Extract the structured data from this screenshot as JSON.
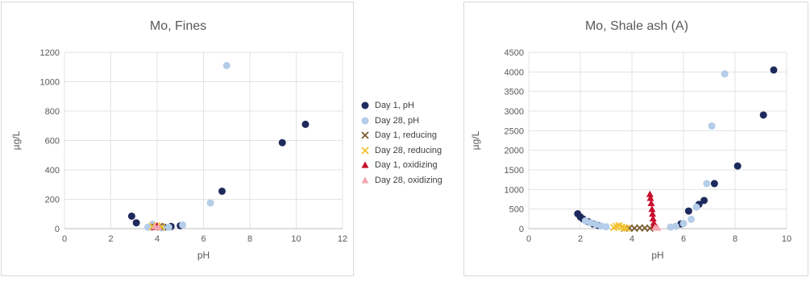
{
  "legend": [
    {
      "name": "Day 1, pH",
      "marker": "circle",
      "color": "#1f2a5c"
    },
    {
      "name": "Day 28, pH",
      "marker": "circle",
      "color": "#b4cde8"
    },
    {
      "name": "Day 1, reducing",
      "marker": "x",
      "color": "#7a5b2e"
    },
    {
      "name": "Day 28, reducing",
      "marker": "x",
      "color": "#f2c12e"
    },
    {
      "name": "Day 1, oxidizing",
      "marker": "triangle",
      "color": "#c8102e"
    },
    {
      "name": "Day 28, oxidizing",
      "marker": "triangle",
      "color": "#f4a6b0"
    }
  ],
  "chart_data": [
    {
      "type": "scatter",
      "title": "Mo, Fines",
      "xlabel": "pH",
      "ylabel": "µg/L",
      "xlim": [
        0,
        12
      ],
      "ylim": [
        0,
        1200
      ],
      "xticks": [
        0,
        2,
        4,
        6,
        8,
        10,
        12
      ],
      "yticks": [
        0,
        200,
        400,
        600,
        800,
        1000,
        1200
      ],
      "grid": true,
      "series": [
        {
          "name": "Day 1, pH",
          "points": [
            [
              2.9,
              85
            ],
            [
              3.1,
              40
            ],
            [
              3.8,
              15
            ],
            [
              4.3,
              10
            ],
            [
              4.6,
              15
            ],
            [
              5.0,
              20
            ],
            [
              6.8,
              255
            ],
            [
              9.4,
              585
            ],
            [
              10.4,
              710
            ]
          ]
        },
        {
          "name": "Day 28, pH",
          "points": [
            [
              3.6,
              10
            ],
            [
              3.8,
              30
            ],
            [
              4.2,
              5
            ],
            [
              4.5,
              10
            ],
            [
              5.1,
              25
            ],
            [
              6.3,
              175
            ],
            [
              7.0,
              1110
            ]
          ]
        },
        {
          "name": "Day 1, reducing",
          "points": [
            [
              3.9,
              10
            ],
            [
              4.1,
              15
            ]
          ]
        },
        {
          "name": "Day 28, reducing",
          "points": [
            [
              3.8,
              15
            ],
            [
              4.0,
              20
            ],
            [
              4.2,
              10
            ]
          ]
        },
        {
          "name": "Day 1, oxidizing",
          "points": [
            [
              3.9,
              10
            ],
            [
              4.0,
              20
            ]
          ]
        },
        {
          "name": "Day 28, oxidizing",
          "points": [
            [
              3.9,
              15
            ],
            [
              4.05,
              10
            ]
          ]
        }
      ]
    },
    {
      "type": "scatter",
      "title": "Mo, Shale ash (A)",
      "xlabel": "pH",
      "ylabel": "µg/L",
      "xlim": [
        0,
        10
      ],
      "ylim": [
        0,
        4500
      ],
      "xticks": [
        0,
        2,
        4,
        6,
        8,
        10
      ],
      "yticks": [
        0,
        500,
        1000,
        1500,
        2000,
        2500,
        3000,
        3500,
        4000,
        4500
      ],
      "grid": true,
      "series": [
        {
          "name": "Day 1, pH",
          "points": [
            [
              1.9,
              380
            ],
            [
              2.0,
              300
            ],
            [
              2.1,
              250
            ],
            [
              2.3,
              180
            ],
            [
              2.5,
              120
            ],
            [
              2.7,
              80
            ],
            [
              5.9,
              120
            ],
            [
              6.2,
              450
            ],
            [
              6.6,
              620
            ],
            [
              6.8,
              720
            ],
            [
              7.2,
              1150
            ],
            [
              8.1,
              1600
            ],
            [
              9.1,
              2900
            ],
            [
              9.5,
              4050
            ]
          ]
        },
        {
          "name": "Day 28, pH",
          "points": [
            [
              2.2,
              200
            ],
            [
              2.4,
              150
            ],
            [
              2.6,
              110
            ],
            [
              2.8,
              70
            ],
            [
              3.0,
              50
            ],
            [
              5.5,
              40
            ],
            [
              5.7,
              60
            ],
            [
              6.0,
              130
            ],
            [
              6.3,
              240
            ],
            [
              6.5,
              550
            ],
            [
              6.9,
              1150
            ],
            [
              7.1,
              2620
            ],
            [
              7.6,
              3950
            ]
          ]
        },
        {
          "name": "Day 1, reducing",
          "points": [
            [
              3.7,
              10
            ],
            [
              3.9,
              15
            ],
            [
              4.1,
              10
            ],
            [
              4.3,
              20
            ],
            [
              4.5,
              15
            ],
            [
              4.7,
              10
            ]
          ]
        },
        {
          "name": "Day 28, reducing",
          "points": [
            [
              3.3,
              30
            ],
            [
              3.4,
              60
            ],
            [
              3.5,
              80
            ],
            [
              3.6,
              40
            ],
            [
              3.7,
              20
            ],
            [
              3.8,
              10
            ]
          ]
        },
        {
          "name": "Day 1, oxidizing",
          "points": [
            [
              4.7,
              880
            ],
            [
              4.72,
              780
            ],
            [
              4.75,
              650
            ],
            [
              4.78,
              500
            ],
            [
              4.8,
              380
            ],
            [
              4.82,
              260
            ],
            [
              4.85,
              150
            ],
            [
              4.87,
              60
            ]
          ]
        },
        {
          "name": "Day 28, oxidizing",
          "points": [
            [
              4.9,
              30
            ],
            [
              5.0,
              20
            ]
          ]
        }
      ]
    }
  ]
}
